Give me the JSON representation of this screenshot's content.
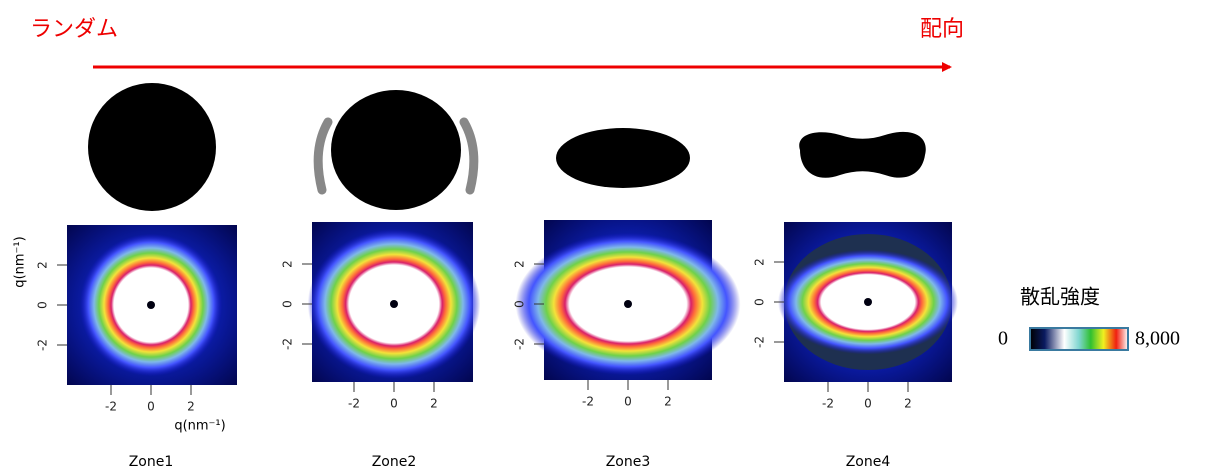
{
  "header": {
    "left": "ランダム",
    "right": "配向"
  },
  "axis_titles": {
    "x": "q(nm⁻¹)",
    "y": "q(nm⁻¹)"
  },
  "panels": [
    {
      "label": "Zone1",
      "xticks": [
        -2,
        0,
        2
      ],
      "yticks": [
        2,
        0,
        -2
      ]
    },
    {
      "label": "Zone2",
      "xticks": [
        -2,
        0,
        2
      ],
      "yticks": [
        2,
        0,
        -2
      ]
    },
    {
      "label": "Zone3",
      "xticks": [
        -2,
        0,
        2
      ],
      "yticks": [
        2,
        0,
        -2
      ]
    },
    {
      "label": "Zone4",
      "xticks": [
        -2,
        0,
        2
      ],
      "yticks": [
        2,
        0,
        -2
      ]
    }
  ],
  "colorbar": {
    "title": "散乱強度",
    "min": "0",
    "max": "8,000"
  }
}
